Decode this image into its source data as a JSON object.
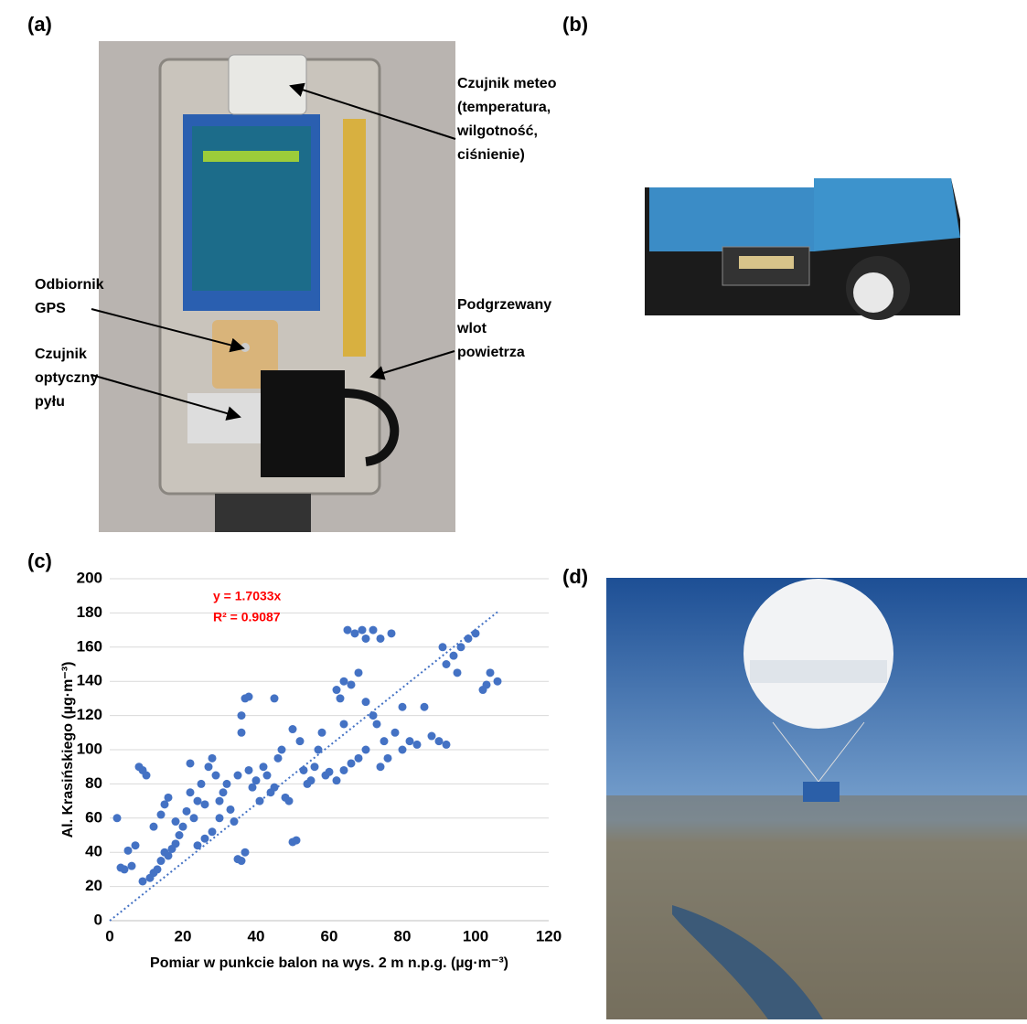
{
  "panels": {
    "a": "(a)",
    "b": "(b)",
    "c": "(c)",
    "d": "(d)"
  },
  "annotations": {
    "meteo": [
      "Czujnik meteo",
      "(temperatura,",
      "wilgotność,",
      "ciśnienie)"
    ],
    "gps": [
      "Odbiornik",
      "GPS"
    ],
    "dust": [
      "Czujnik",
      "optyczny",
      "pyłu"
    ],
    "inlet": [
      "Podgrzewany",
      "wlot",
      "powietrza"
    ]
  },
  "chart_data": {
    "type": "scatter",
    "xlabel": "Pomiar w punkcie balon na wys. 2 m n.p.g. (µg·m⁻³)",
    "ylabel": "Al. Krasińskiego  (µg·m⁻³)",
    "trendline": {
      "equation": "y = 1.7033x",
      "r2": "R² = 0.9087",
      "slope": 1.7033
    },
    "color": "#4472c4",
    "grid": true,
    "xlim": [
      0,
      120
    ],
    "ylim": [
      0,
      200
    ],
    "xticks": [
      0,
      20,
      40,
      60,
      80,
      100,
      120
    ],
    "yticks": [
      0,
      20,
      40,
      60,
      80,
      100,
      120,
      140,
      160,
      180,
      200
    ],
    "x": [
      2,
      3,
      4,
      5,
      6,
      7,
      8,
      9,
      10,
      9,
      11,
      12,
      13,
      14,
      15,
      16,
      17,
      18,
      12,
      14,
      15,
      16,
      18,
      19,
      20,
      21,
      22,
      23,
      24,
      25,
      26,
      27,
      28,
      29,
      30,
      22,
      24,
      26,
      28,
      30,
      31,
      32,
      33,
      34,
      35,
      36,
      37,
      35,
      36,
      37,
      38,
      38,
      39,
      40,
      41,
      42,
      43,
      44,
      45,
      46,
      47,
      48,
      50,
      51,
      49,
      52,
      53,
      54,
      55,
      56,
      57,
      58,
      59,
      60,
      62,
      63,
      64,
      65,
      66,
      67,
      68,
      69,
      70,
      72,
      74,
      77,
      62,
      64,
      66,
      68,
      70,
      72,
      73,
      74,
      75,
      76,
      78,
      80,
      82,
      84,
      86,
      88,
      90,
      92,
      91,
      92,
      94,
      95,
      96,
      98,
      100,
      102,
      103,
      104,
      106,
      36,
      45,
      50,
      64,
      70,
      80
    ],
    "values": [
      60,
      31,
      30,
      41,
      32,
      44,
      90,
      88,
      85,
      23,
      25,
      28,
      30,
      35,
      40,
      38,
      42,
      45,
      55,
      62,
      68,
      72,
      58,
      50,
      55,
      64,
      75,
      60,
      70,
      80,
      68,
      90,
      95,
      85,
      60,
      92,
      44,
      48,
      52,
      70,
      75,
      80,
      65,
      58,
      36,
      35,
      40,
      85,
      120,
      130,
      131,
      88,
      78,
      82,
      70,
      90,
      85,
      75,
      78,
      95,
      100,
      72,
      46,
      47,
      70,
      105,
      88,
      80,
      82,
      90,
      100,
      110,
      85,
      87,
      135,
      130,
      140,
      170,
      138,
      168,
      145,
      170,
      165,
      170,
      165,
      168,
      82,
      88,
      92,
      95,
      100,
      120,
      115,
      90,
      105,
      95,
      110,
      100,
      105,
      103,
      125,
      108,
      105,
      103,
      160,
      150,
      155,
      145,
      160,
      165,
      168,
      135,
      138,
      145,
      140,
      110,
      130,
      112,
      115,
      128,
      125
    ]
  }
}
